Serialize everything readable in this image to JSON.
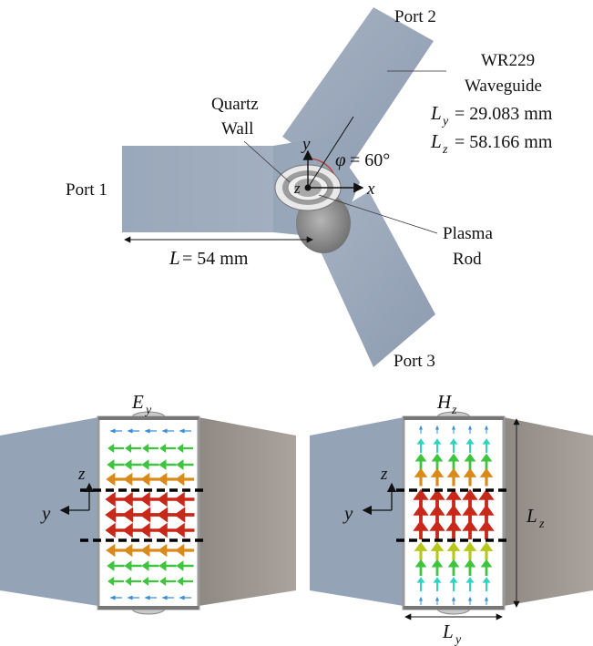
{
  "top": {
    "port1": "Port 1",
    "port2": "Port 2",
    "port3": "Port 3",
    "waveguide_line1": "WR229",
    "waveguide_line2": "Waveguide",
    "ly_label": "L",
    "ly_sub": "y",
    "ly_value": "= 29.083 mm",
    "lz_label": "L",
    "lz_sub": "z",
    "lz_value": "= 58.166 mm",
    "quartz_line1": "Quartz",
    "quartz_line2": "Wall",
    "plasma_line1": "Plasma",
    "plasma_line2": "Rod",
    "length_label": "L",
    "length_value": "= 54 mm",
    "phi_label": "φ",
    "phi_value": "= 60°",
    "axis_x": "x",
    "axis_y": "y",
    "axis_z": "z"
  },
  "bottom_left": {
    "title": "E",
    "title_sub": "y",
    "axis_z": "z",
    "axis_y": "y"
  },
  "bottom_right": {
    "title": "H",
    "title_sub": "z",
    "axis_z": "z",
    "axis_y": "y",
    "lz_label": "L",
    "lz_sub": "z",
    "ly_label": "L",
    "ly_sub": "y"
  },
  "colors": {
    "waveguide": "#9aa8bb",
    "waveguide_dark": "#8796aa",
    "shade_right": "#9e9690",
    "dashed": "#000000",
    "arrow_blue": "#3a8fd8",
    "arrow_green": "#3ec43e",
    "arrow_orange": "#d88a1a",
    "arrow_red": "#c8281a",
    "arrow_cyan": "#2fd4c0",
    "arrow_yellow": "#b8c81a"
  }
}
